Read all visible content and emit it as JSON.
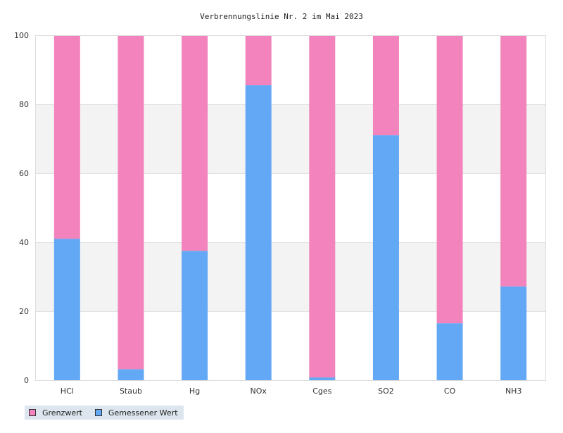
{
  "chart_data": {
    "type": "bar",
    "stacked": true,
    "title": "Verbrennungslinie Nr. 2 im Mai 2023",
    "categories": [
      "HCl",
      "Staub",
      "Hg",
      "NOx",
      "Cges",
      "SO2",
      "CO",
      "NH3"
    ],
    "series": [
      {
        "name": "Gemessener Wert",
        "color": "#63a8f4",
        "values": [
          41,
          3.2,
          37.5,
          85.5,
          0.8,
          71,
          16.5,
          27.2
        ]
      },
      {
        "name": "Grenzwert",
        "color": "#f383bc",
        "values": [
          59,
          96.8,
          62.5,
          14.5,
          99.2,
          29,
          83.5,
          72.8
        ]
      }
    ],
    "ylim": [
      0,
      100
    ],
    "yticks": [
      0,
      20,
      40,
      60,
      80,
      100
    ],
    "grid": "alternating horizontal bands",
    "legend_position": "bottom-left",
    "legend_order": [
      "Grenzwert",
      "Gemessener Wert"
    ],
    "band_color": "#f3f3f3"
  }
}
